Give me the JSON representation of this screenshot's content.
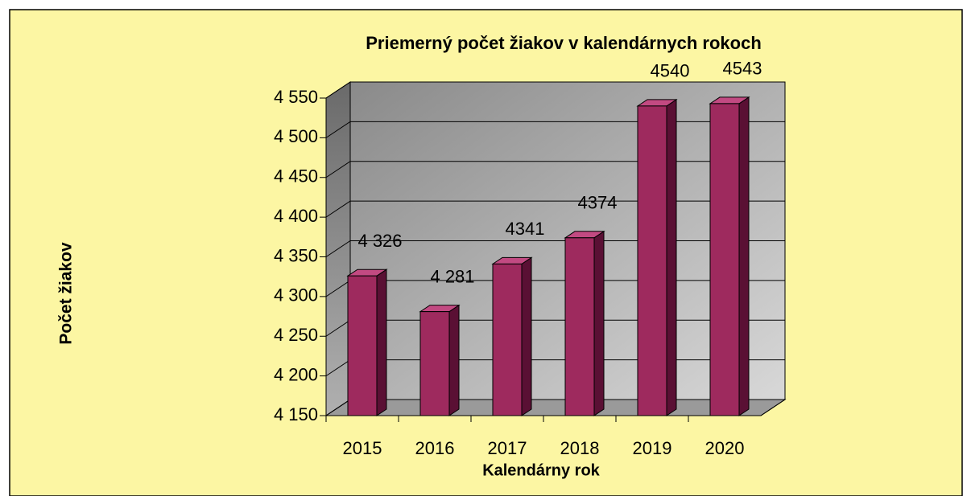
{
  "chart_data": {
    "type": "bar3d",
    "title": "Priemerný počet žiakov v kalendárnych rokoch",
    "x_label": "Kalendárny rok",
    "y_label": "Počet žiakov",
    "categories": [
      "2015",
      "2016",
      "2017",
      "2018",
      "2019",
      "2020"
    ],
    "values": [
      4326,
      4281,
      4341,
      4374,
      4540,
      4543
    ],
    "value_labels": [
      "4 326",
      "4 281",
      "4341",
      "4374",
      "4540",
      "4543"
    ],
    "color": "#9E2A5E",
    "ylim": [
      4150,
      4550
    ],
    "yticks": [
      {
        "value": 4150,
        "label": "4 150"
      },
      {
        "value": 4200,
        "label": "4 200"
      },
      {
        "value": 4250,
        "label": "4 250"
      },
      {
        "value": 4300,
        "label": "4 300"
      },
      {
        "value": 4350,
        "label": "4 350"
      },
      {
        "value": 4400,
        "label": "4 400"
      },
      {
        "value": 4450,
        "label": "4 450"
      },
      {
        "value": 4500,
        "label": "4 500"
      },
      {
        "value": 4550,
        "label": "4 550"
      }
    ],
    "grid": true
  }
}
